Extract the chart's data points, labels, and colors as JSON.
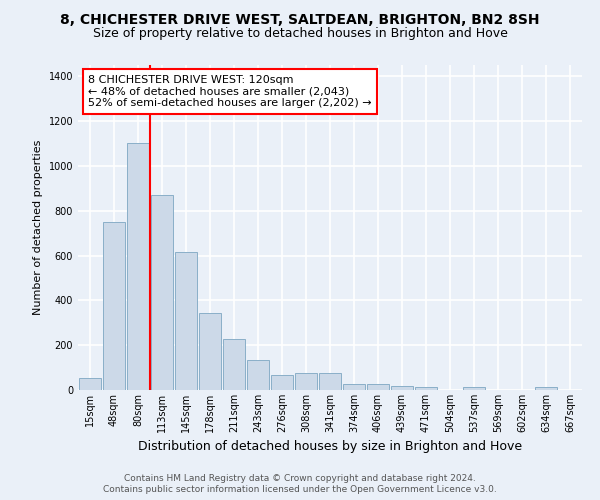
{
  "title": "8, CHICHESTER DRIVE WEST, SALTDEAN, BRIGHTON, BN2 8SH",
  "subtitle": "Size of property relative to detached houses in Brighton and Hove",
  "xlabel": "Distribution of detached houses by size in Brighton and Hove",
  "ylabel": "Number of detached properties",
  "categories": [
    "15sqm",
    "48sqm",
    "80sqm",
    "113sqm",
    "145sqm",
    "178sqm",
    "211sqm",
    "243sqm",
    "276sqm",
    "308sqm",
    "341sqm",
    "374sqm",
    "406sqm",
    "439sqm",
    "471sqm",
    "504sqm",
    "537sqm",
    "569sqm",
    "602sqm",
    "634sqm",
    "667sqm"
  ],
  "values": [
    55,
    750,
    1100,
    870,
    615,
    345,
    228,
    135,
    65,
    75,
    75,
    28,
    28,
    20,
    12,
    0,
    12,
    0,
    0,
    12,
    0
  ],
  "bar_color": "#ccd9e8",
  "bar_edge_color": "#8aafc8",
  "vline_x_idx": 3,
  "vline_color": "red",
  "annotation_text": "8 CHICHESTER DRIVE WEST: 120sqm\n← 48% of detached houses are smaller (2,043)\n52% of semi-detached houses are larger (2,202) →",
  "annotation_box_facecolor": "white",
  "annotation_box_edgecolor": "red",
  "ylim": [
    0,
    1450
  ],
  "yticks": [
    0,
    200,
    400,
    600,
    800,
    1000,
    1200,
    1400
  ],
  "footer_line1": "Contains HM Land Registry data © Crown copyright and database right 2024.",
  "footer_line2": "Contains public sector information licensed under the Open Government Licence v3.0.",
  "bg_color": "#eaf0f8",
  "grid_color": "white",
  "title_fontsize": 10,
  "subtitle_fontsize": 9,
  "ylabel_fontsize": 8,
  "xlabel_fontsize": 9,
  "tick_fontsize": 7,
  "footer_fontsize": 6.5
}
